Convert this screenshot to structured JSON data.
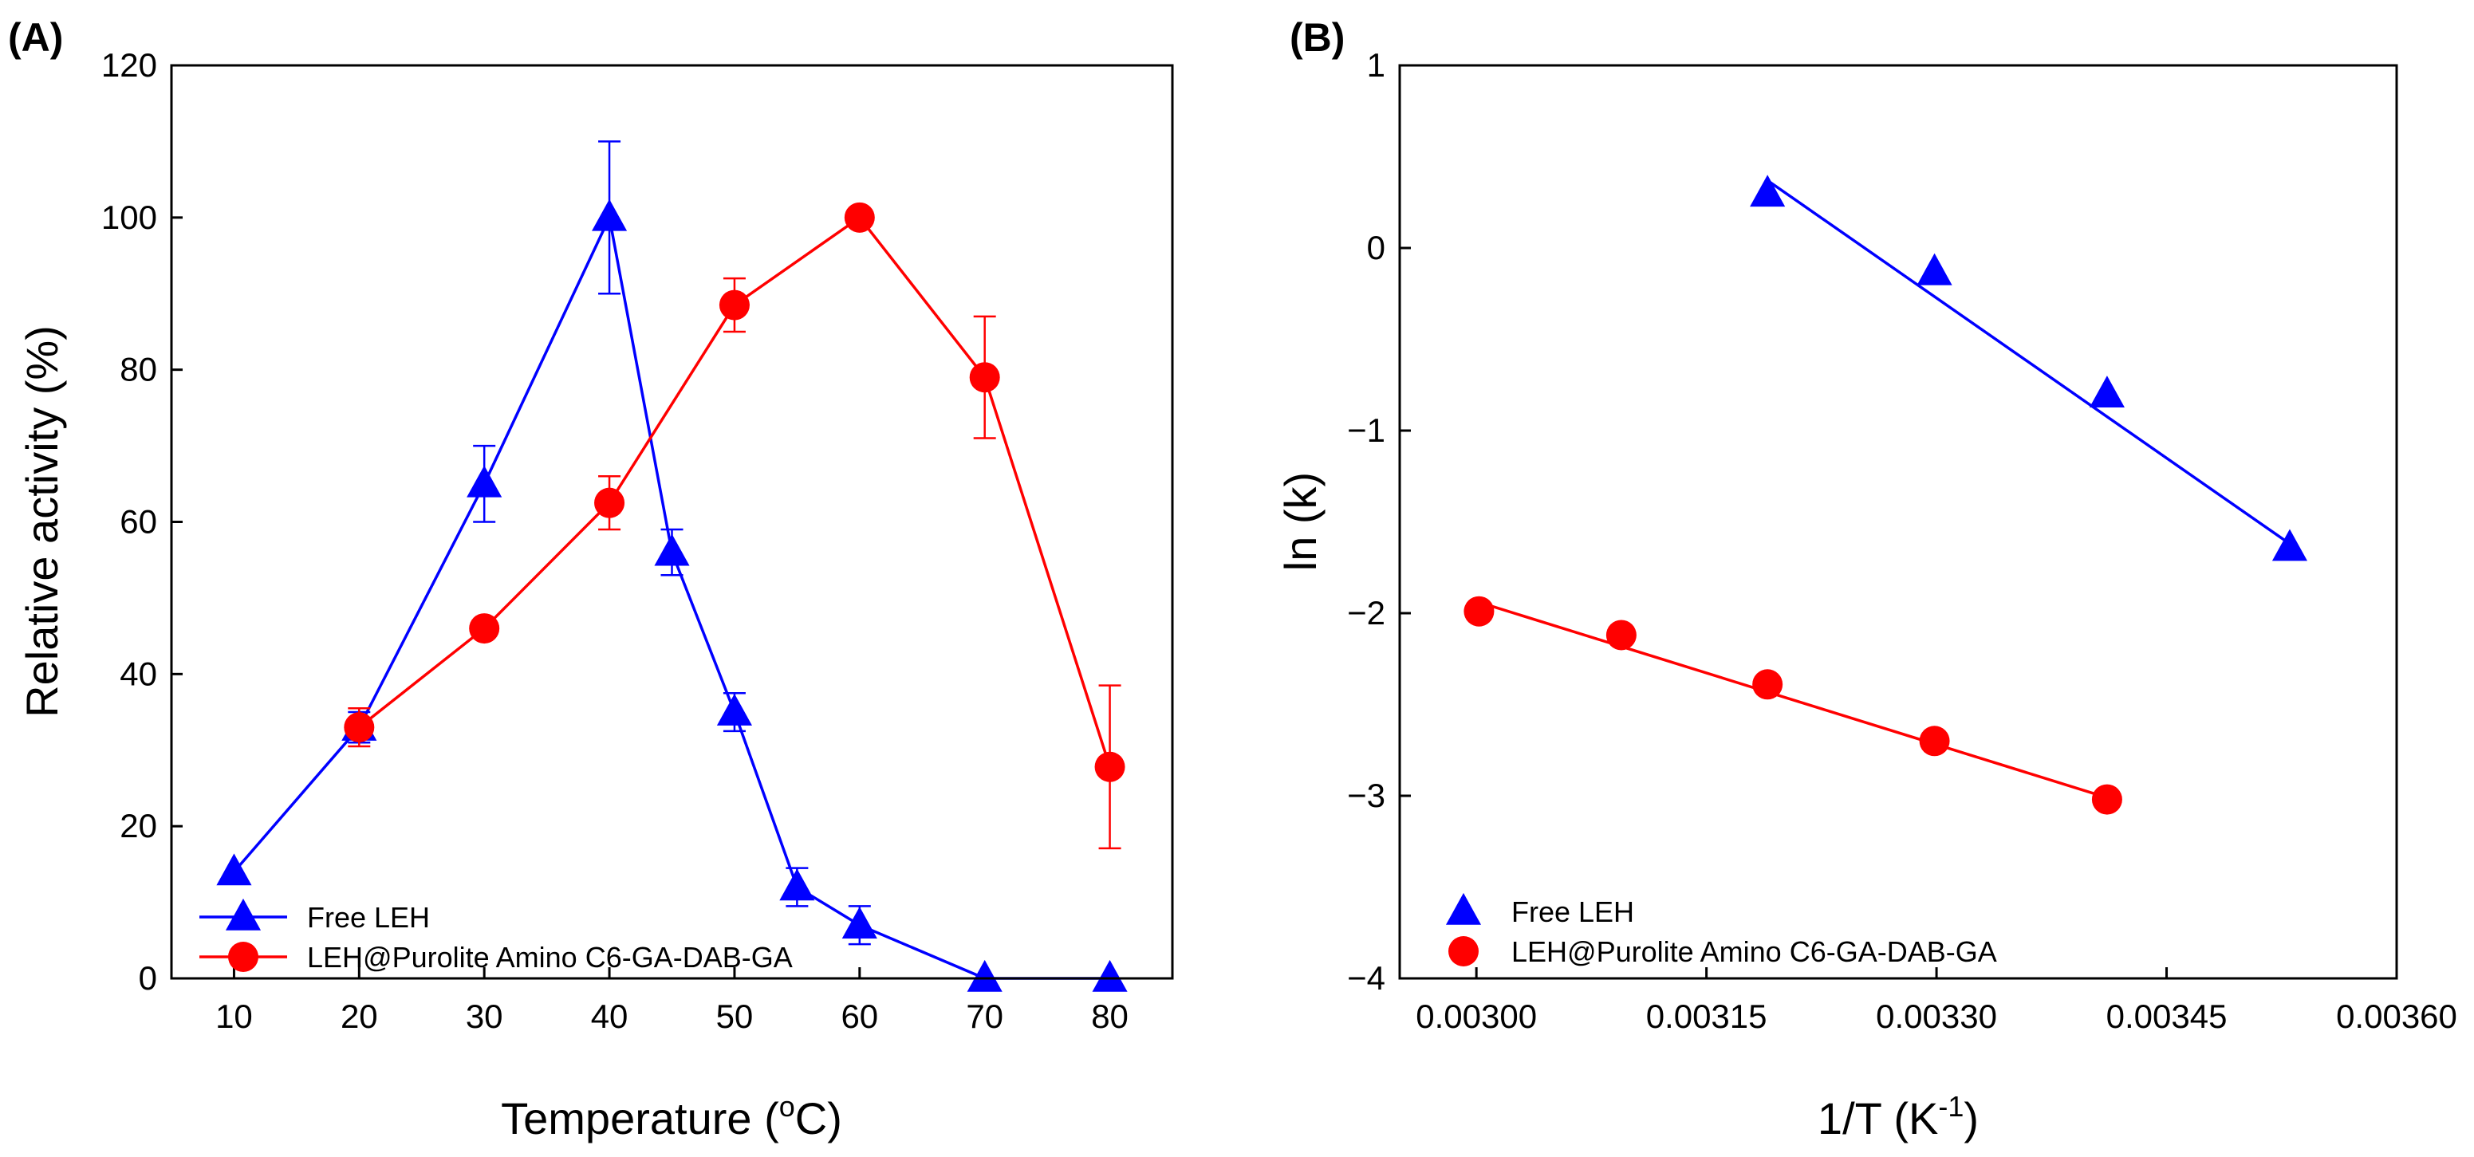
{
  "colors": {
    "series1": "#0000ff",
    "series2": "#ff0000",
    "axis": "#000000"
  },
  "chart_data": [
    {
      "type": "line",
      "panel_label": "(A)",
      "title": "",
      "xlabel": "Temperature (",
      "xlabel_sup": "o",
      "xlabel_suffix": "C)",
      "ylabel": "Relative activity (%)",
      "xlim": [
        5,
        85
      ],
      "ylim": [
        0,
        120
      ],
      "xticks": [
        10,
        20,
        30,
        40,
        50,
        60,
        70,
        80
      ],
      "xtick_labels": [
        "10",
        "20",
        "30",
        "40",
        "50",
        "60",
        "70",
        "80"
      ],
      "yticks": [
        0,
        20,
        40,
        60,
        80,
        100,
        120
      ],
      "ytick_labels": [
        "0",
        "20",
        "40",
        "60",
        "80",
        "100",
        "120"
      ],
      "legend_position": "bottom-left",
      "series": [
        {
          "name": "Free LEH",
          "marker": "triangle",
          "color": "#0000ff",
          "x": [
            10,
            20,
            30,
            40,
            45,
            50,
            55,
            60,
            70,
            80
          ],
          "y": [
            14,
            33,
            65,
            100,
            56,
            35,
            12,
            7,
            0,
            0
          ],
          "err": [
            0,
            2,
            5,
            10,
            3,
            2.5,
            2.5,
            2.5,
            0,
            0
          ]
        },
        {
          "name": "LEH@Purolite Amino C6-GA-DAB-GA",
          "marker": "circle",
          "color": "#ff0000",
          "x": [
            20,
            30,
            40,
            50,
            60,
            70,
            80
          ],
          "y": [
            33,
            46,
            62.5,
            88.5,
            100,
            79,
            27.8
          ],
          "err": [
            2.5,
            0,
            3.5,
            3.5,
            0,
            8,
            10.7
          ]
        }
      ]
    },
    {
      "type": "scatter",
      "panel_label": "(B)",
      "title": "",
      "xlabel": "1/T (K",
      "xlabel_sup": "-1",
      "xlabel_suffix": ")",
      "ylabel": "ln (k)",
      "xlim": [
        0.00295,
        0.0036
      ],
      "ylim": [
        -4,
        1
      ],
      "xticks": [
        0.003,
        0.00315,
        0.0033,
        0.00345,
        0.0036
      ],
      "xtick_labels": [
        "0.00300",
        "0.00315",
        "0.00330",
        "0.00345",
        "0.00360"
      ],
      "yticks": [
        -4,
        -3,
        -2,
        -1,
        0,
        1
      ],
      "ytick_labels": [
        "−4",
        "−3",
        "−2",
        "−1",
        "0",
        "1"
      ],
      "legend_position": "bottom-left",
      "series": [
        {
          "name": "Free LEH",
          "marker": "triangle",
          "color": "#0000ff",
          "x": [
            0.0031898,
            0.0032987,
            0.0034112,
            0.0035303
          ],
          "y": [
            0.3,
            -0.13,
            -0.8,
            -1.64
          ],
          "fit": {
            "x": [
              0.0031898,
              0.0035303
            ],
            "y": [
              0.37,
              -1.62
            ]
          }
        },
        {
          "name": "LEH@Purolite Amino C6-GA-DAB-GA",
          "marker": "circle",
          "color": "#ff0000",
          "x": [
            0.0030017,
            0.0030945,
            0.0031898,
            0.0032987,
            0.0034112
          ],
          "y": [
            -1.99,
            -2.12,
            -2.39,
            -2.7,
            -3.02
          ],
          "fit": {
            "x": [
              0.0030017,
              0.0034112
            ],
            "y": [
              -1.94,
              -3.01
            ]
          }
        }
      ]
    }
  ]
}
